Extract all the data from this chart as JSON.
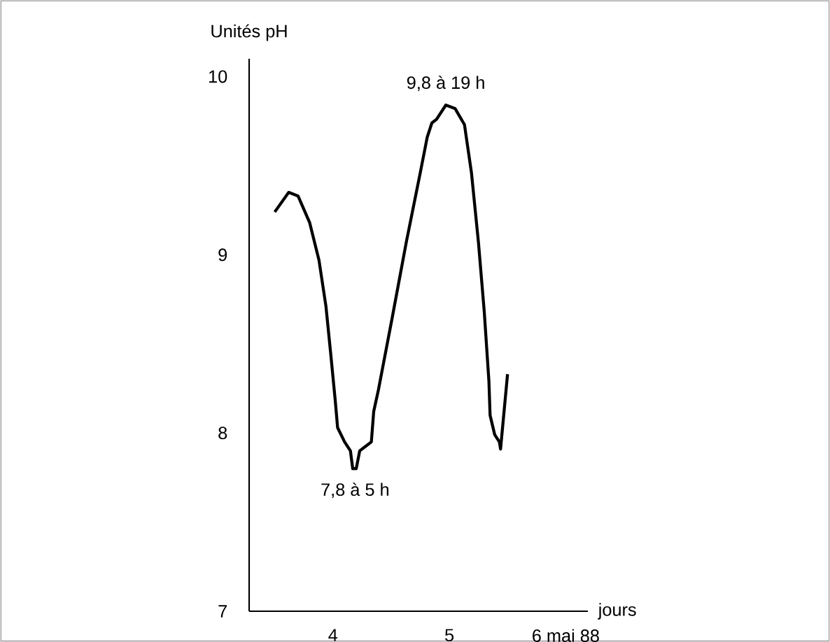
{
  "chart_data": {
    "type": "line",
    "ylabel": "Unités pH",
    "xlabel": "jours",
    "xlim": [
      3.28,
      6.19
    ],
    "ylim": [
      7,
      10.1
    ],
    "xticks": [
      4,
      5,
      {
        "value": 6,
        "label": "6 mai 88"
      }
    ],
    "yticks": [
      7,
      8,
      9,
      10
    ],
    "series": [
      {
        "color": "#000000",
        "x": [
          3.5,
          3.62,
          3.7,
          3.8,
          3.88,
          3.94,
          3.98,
          4.02,
          4.04,
          4.1,
          4.15,
          4.17,
          4.2,
          4.23,
          4.29,
          4.33,
          4.35,
          4.39,
          4.51,
          4.63,
          4.75,
          4.81,
          4.85,
          4.89,
          4.97,
          5.05,
          5.13,
          5.19,
          5.25,
          5.3,
          5.34,
          5.35,
          5.39,
          5.43,
          5.44,
          5.5
        ],
        "values": [
          9.24,
          9.35,
          9.33,
          9.18,
          8.97,
          8.71,
          8.45,
          8.18,
          8.03,
          7.95,
          7.9,
          7.8,
          7.8,
          7.9,
          7.93,
          7.95,
          8.12,
          8.24,
          8.65,
          9.07,
          9.46,
          9.66,
          9.74,
          9.76,
          9.84,
          9.82,
          9.73,
          9.46,
          9.07,
          8.68,
          8.29,
          8.1,
          7.99,
          7.95,
          7.91,
          8.33
        ]
      }
    ],
    "annotations": [
      {
        "text": "9,8 à 19 h",
        "x": 4.97,
        "y": 9.84
      },
      {
        "text": "7,8 à 5 h",
        "x": 4.19,
        "y": 7.8
      }
    ],
    "grid": false,
    "marker": "none",
    "line_style": "solid"
  }
}
